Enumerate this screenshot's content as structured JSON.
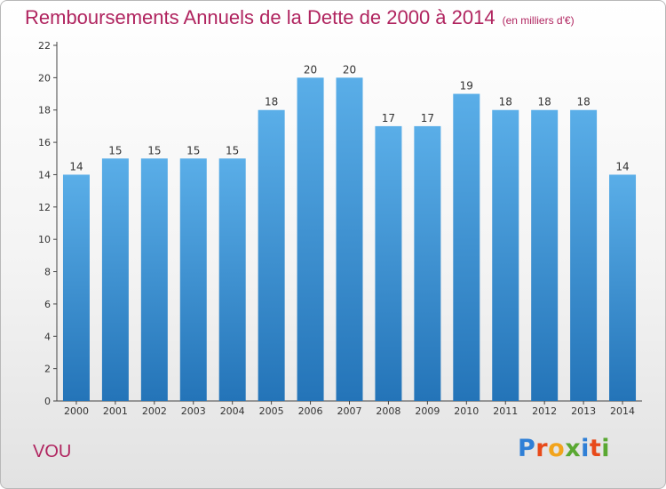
{
  "header": {
    "title": "Remboursements Annuels de la Dette de 2000 à 2014",
    "subtitle": "(en milliers d'€)"
  },
  "location": "VOU",
  "logo": {
    "letters": [
      {
        "char": "P",
        "color": "#2f7fd6"
      },
      {
        "char": "r",
        "color": "#e84a1a"
      },
      {
        "char": "o",
        "color": "#f2a41c"
      },
      {
        "char": "x",
        "color": "#5aa832"
      },
      {
        "char": "i",
        "color": "#2f7fd6"
      },
      {
        "char": "t",
        "color": "#e84a1a"
      },
      {
        "char": "i",
        "color": "#5aa832"
      }
    ]
  },
  "colors": {
    "accent": "#b0245f",
    "bar_top": "#5aaee8",
    "bar_bottom": "#2474b8",
    "axis": "#444444"
  },
  "chart_data": {
    "type": "bar",
    "categories": [
      "2000",
      "2001",
      "2002",
      "2003",
      "2004",
      "2005",
      "2006",
      "2007",
      "2008",
      "2009",
      "2010",
      "2011",
      "2012",
      "2013",
      "2014"
    ],
    "values": [
      14,
      15,
      15,
      15,
      15,
      18,
      20,
      20,
      17,
      17,
      19,
      18,
      18,
      18,
      14
    ],
    "data_labels": [
      "14",
      "15",
      "15",
      "15",
      "15",
      "18",
      "20",
      "20",
      "17",
      "17",
      "19",
      "18",
      "18",
      "18",
      "14"
    ],
    "yticks": [
      0,
      2,
      4,
      6,
      8,
      10,
      12,
      14,
      16,
      18,
      20,
      22
    ],
    "ylim": [
      0,
      22
    ],
    "xlabel": "",
    "ylabel": "",
    "grid": false
  }
}
